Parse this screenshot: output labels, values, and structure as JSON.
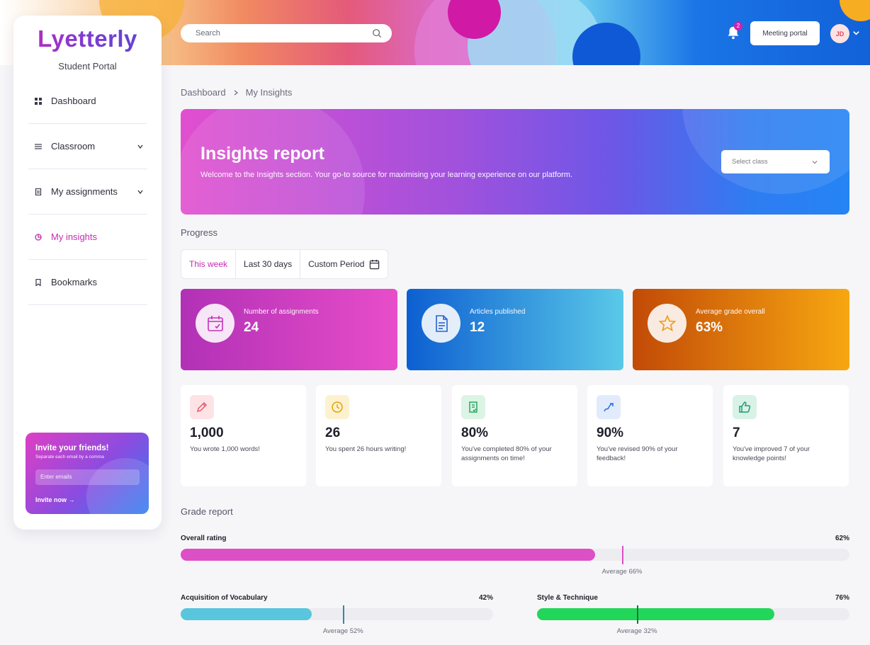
{
  "brand": {
    "logo_text": "Lyetterly",
    "portal": "Student Portal"
  },
  "header": {
    "search_placeholder": "Search",
    "notification_count": "2",
    "meeting_portal": "Meeting portal",
    "user_initials": "JD"
  },
  "sidebar": {
    "items": [
      {
        "label": "Dashboard",
        "icon": "grid-icon",
        "expandable": false,
        "active": false
      },
      {
        "label": "Classroom",
        "icon": "list-icon",
        "expandable": true,
        "active": false
      },
      {
        "label": "My assignments",
        "icon": "document-icon",
        "expandable": true,
        "active": false
      },
      {
        "label": "My insights",
        "icon": "pie-chart-icon",
        "expandable": false,
        "active": true
      },
      {
        "label": "Bookmarks",
        "icon": "bookmark-icon",
        "expandable": false,
        "active": false
      }
    ],
    "invite": {
      "title": "Invite your friends!",
      "subtitle": "Separate each email by a comma",
      "placeholder": "Enter emails",
      "button": "Invite now →"
    }
  },
  "breadcrumb": [
    "Dashboard",
    "My Insights"
  ],
  "hero": {
    "title": "Insights report",
    "text": "Welcome to the Insights section. Your go-to source for maximising your learning experience on our platform.",
    "select_placeholder": "Select class"
  },
  "progress": {
    "title": "Progress",
    "periods": [
      "This week",
      "Last 30 days",
      "Custom Period"
    ],
    "active_period": "This week"
  },
  "kpis": [
    {
      "label": "Number of assignments",
      "value": "24",
      "icon": "calendar-check-icon"
    },
    {
      "label": "Articles published",
      "value": "12",
      "icon": "file-text-icon"
    },
    {
      "label": "Average grade overall",
      "value": "63%",
      "icon": "star-icon"
    }
  ],
  "stats": [
    {
      "value": "1,000",
      "desc": "You wrote 1,000 words!",
      "icon": "pencil-icon",
      "color": "#e8566b",
      "bg": "#fde3e6"
    },
    {
      "value": "26",
      "desc": "You spent 26 hours writing!",
      "icon": "clock-icon",
      "color": "#e2a10d",
      "bg": "#fdf2cf"
    },
    {
      "value": "80%",
      "desc": "You've completed 80% of your assignments on time!",
      "icon": "checklist-icon",
      "color": "#2aa861",
      "bg": "#dcf4e4"
    },
    {
      "value": "90%",
      "desc": "You've revised 90% of your feedback!",
      "icon": "trend-icon",
      "color": "#2b6fe0",
      "bg": "#e1ebfc"
    },
    {
      "value": "7",
      "desc": "You've improved 7 of your knowledge points!",
      "icon": "thumbs-up-icon",
      "color": "#1f9b6b",
      "bg": "#d9f2e8"
    }
  ],
  "grade_report": {
    "title": "Grade report",
    "bars": [
      {
        "label": "Overall rating",
        "value": 62,
        "value_text": "62%",
        "average": 66,
        "average_text": "Average 66%",
        "color": "#dd4fc5",
        "avg_color": "#dd4fc5"
      },
      {
        "label": "Acquisition of Vocabulary",
        "value": 42,
        "value_text": "42%",
        "average": 52,
        "average_text": "Average 52%",
        "color": "#59c6de",
        "avg_color": "#2f8b9c"
      },
      {
        "label": "Style & Technique",
        "value": 76,
        "value_text": "76%",
        "average": 32,
        "average_text": "Average 32%",
        "color": "#22d65a",
        "avg_color": "#137a33"
      }
    ]
  }
}
